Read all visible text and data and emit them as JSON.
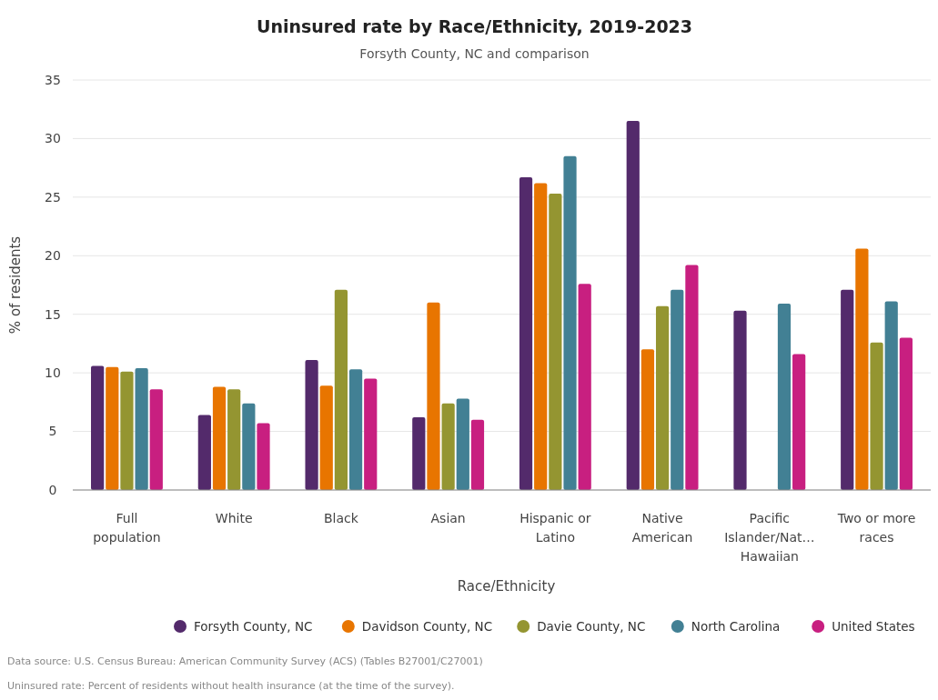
{
  "chart_data": {
    "type": "bar",
    "title": "Uninsured rate by Race/Ethnicity, 2019-2023",
    "subtitle": "Forsyth County, NC and comparison",
    "xlabel": "Race/Ethnicity",
    "ylabel": "% of residents",
    "categories": [
      "Full population",
      "White",
      "Black",
      "Asian",
      "Hispanic or Latino",
      "Native American",
      "Pacific Islander/Nat… Hawaiian",
      "Two or more races"
    ],
    "series": [
      {
        "name": "Forsyth County, NC",
        "color": "#532a6b",
        "values": [
          10.6,
          6.4,
          11.1,
          6.2,
          26.7,
          31.5,
          15.3,
          17.1
        ]
      },
      {
        "name": "Davidson County, NC",
        "color": "#e87500",
        "values": [
          10.5,
          8.8,
          8.9,
          16.0,
          26.2,
          12.0,
          null,
          20.6
        ]
      },
      {
        "name": "Davie County, NC",
        "color": "#949531",
        "values": [
          10.1,
          8.6,
          17.1,
          7.4,
          25.3,
          15.7,
          null,
          12.6
        ]
      },
      {
        "name": "North Carolina",
        "color": "#428094",
        "values": [
          10.4,
          7.4,
          10.3,
          7.8,
          28.5,
          17.1,
          15.9,
          16.1
        ]
      },
      {
        "name": "United States",
        "color": "#c81f80",
        "values": [
          8.6,
          5.7,
          9.5,
          6.0,
          17.6,
          19.2,
          11.6,
          13.0
        ]
      }
    ],
    "ylim": [
      0,
      35
    ],
    "yticks": [
      0,
      5,
      10,
      15,
      20,
      25,
      30,
      35
    ],
    "grid": "y",
    "legend": "bottom",
    "annotations": [
      "Data source: U.S. Census Bureau: American Community Survey (ACS) (Tables B27001/C27001)",
      "Uninsured rate: Percent of residents without health insurance (at the time of the survey)."
    ]
  }
}
